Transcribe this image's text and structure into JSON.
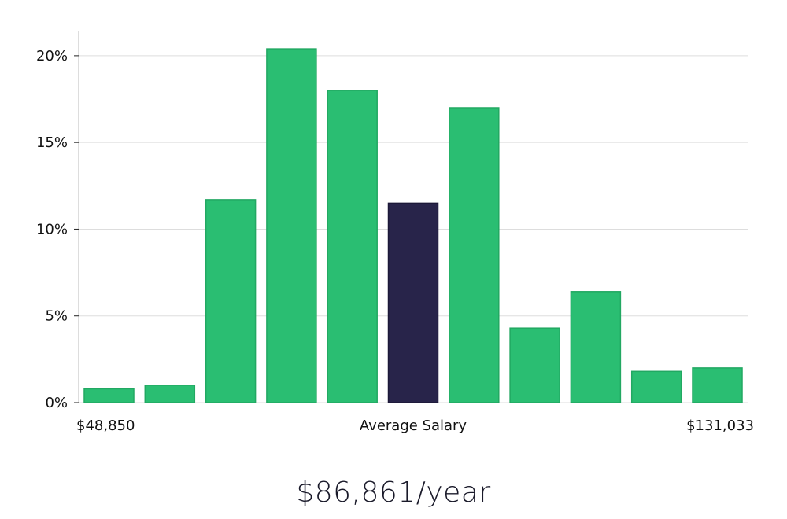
{
  "chart_data": {
    "type": "bar",
    "title": "",
    "xlabel": "Average Salary",
    "ylabel": "",
    "x_min_label": "$48,850",
    "x_max_label": "$131,033",
    "ylim": [
      0,
      21.4
    ],
    "yticks": [
      0,
      5,
      10,
      15,
      20
    ],
    "ytick_labels": [
      "0%",
      "5%",
      "10%",
      "15%",
      "20%"
    ],
    "grid": true,
    "bins": 11,
    "values": [
      0.8,
      1.0,
      11.7,
      20.4,
      18.0,
      11.5,
      17.0,
      4.3,
      6.4,
      1.8,
      2.0
    ],
    "highlight_index": 5,
    "colors": {
      "bar": "#2ABE72",
      "bar_stroke": "#22A862",
      "highlight": "#28244A",
      "grid": "#DDDDDD",
      "axis": "#BBBBBB"
    }
  },
  "salary_summary": "$86,861/year"
}
